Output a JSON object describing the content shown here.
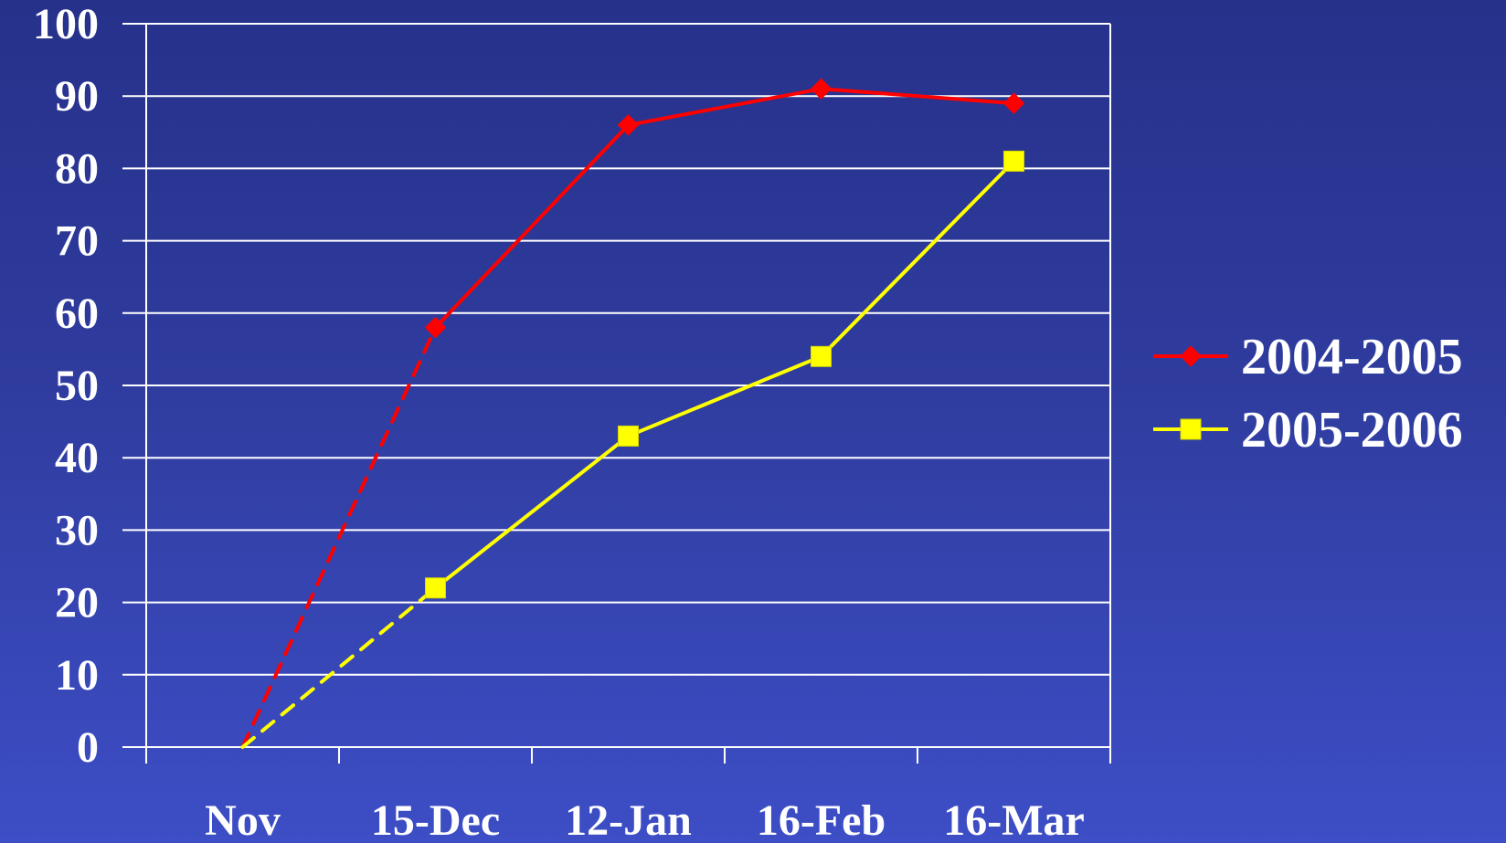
{
  "chart_data": {
    "type": "line",
    "categories": [
      "Nov",
      "15-Dec",
      "12-Jan",
      "16-Feb",
      "16-Mar"
    ],
    "ylim": [
      0,
      100
    ],
    "yticks": [
      "0",
      "10",
      "20",
      "30",
      "40",
      "50",
      "60",
      "70",
      "80",
      "90",
      "100"
    ],
    "grid": true,
    "legend_position": "right",
    "title": "",
    "xlabel": "",
    "ylabel": "",
    "series": [
      {
        "name": "2004-2005",
        "color": "#ff0000",
        "marker": "diamond",
        "values": [
          0,
          58,
          86,
          91,
          89
        ],
        "dashed_segments": [
          0
        ]
      },
      {
        "name": "2005-2006",
        "color": "#ffff00",
        "marker": "square",
        "values": [
          0,
          22,
          43,
          54,
          81
        ],
        "dashed_segments": [
          0
        ]
      }
    ]
  }
}
